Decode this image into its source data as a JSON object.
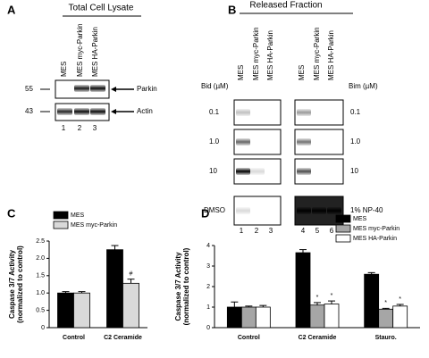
{
  "blots": {
    "total_lysate": {
      "panel": "A",
      "title": "Total Cell Lysate",
      "lanes": [
        "MES",
        "MES myc-Parkin",
        "MES HA-Parkin"
      ],
      "lane_numbers": [
        "1",
        "2",
        "3"
      ],
      "markers": [
        "55",
        "43"
      ],
      "bands": [
        "Parkin",
        "Actin"
      ]
    },
    "released": {
      "panel": "B",
      "title": "Released Fraction",
      "lanes": [
        "MES",
        "MES myc-Parkin",
        "MES HA-Parkin",
        "MES",
        "MES myc-Parkin",
        "MES HA-Parkin"
      ],
      "lane_numbers": [
        "1",
        "2",
        "3",
        "4",
        "5",
        "6"
      ],
      "left_header": "Bid (µM)",
      "right_header": "Bim (µM)",
      "left_rows": [
        "0.1",
        "1.0",
        "10",
        "DMSO"
      ],
      "right_rows": [
        "0.1",
        "1.0",
        "10",
        "1% NP-40"
      ]
    }
  },
  "chart_data": [
    {
      "panel": "C",
      "type": "bar",
      "y_label": [
        "Caspase 3/7  Activity",
        "(normalized to control)"
      ],
      "categories": [
        "Control",
        "C2 Ceramide"
      ],
      "series": [
        {
          "name": "MES",
          "color": "#000000",
          "values": [
            1.0,
            2.25
          ],
          "errors": [
            0.04,
            0.12
          ]
        },
        {
          "name": "MES myc-Parkin",
          "color": "#d9d9d9",
          "values": [
            1.0,
            1.28
          ],
          "errors": [
            0.04,
            0.12
          ],
          "markers": [
            null,
            "#"
          ]
        }
      ],
      "ylim": [
        0,
        2.5
      ],
      "yticks": [
        0,
        0.5,
        {
          "value": 1,
          "label": "1.0"
        },
        1.5,
        {
          "value": 2,
          "label": "2.0"
        },
        2.5
      ]
    },
    {
      "panel": "D",
      "type": "bar",
      "y_label": [
        "Caspase 3/7  Activity",
        "(normalized to control)"
      ],
      "categories": [
        "Control",
        "C2 Ceramide",
        "Stauro."
      ],
      "series": [
        {
          "name": "MES",
          "color": "#000000",
          "values": [
            1.0,
            3.65,
            2.6
          ],
          "errors": [
            0.25,
            0.15,
            0.08
          ]
        },
        {
          "name": "MES myc-Parkin",
          "color": "#a6a6a6",
          "values": [
            1.0,
            1.1,
            0.9
          ],
          "errors": [
            0.05,
            0.12,
            0.04
          ],
          "markers": [
            null,
            "*",
            "*"
          ]
        },
        {
          "name": "MES HA-Parkin",
          "color": "#ffffff",
          "values": [
            1.0,
            1.15,
            1.05
          ],
          "errors": [
            0.08,
            0.15,
            0.08
          ],
          "markers": [
            null,
            "*",
            "*"
          ]
        }
      ],
      "ylim": [
        0,
        4
      ],
      "yticks": [
        0,
        1,
        2,
        3,
        4
      ]
    }
  ]
}
